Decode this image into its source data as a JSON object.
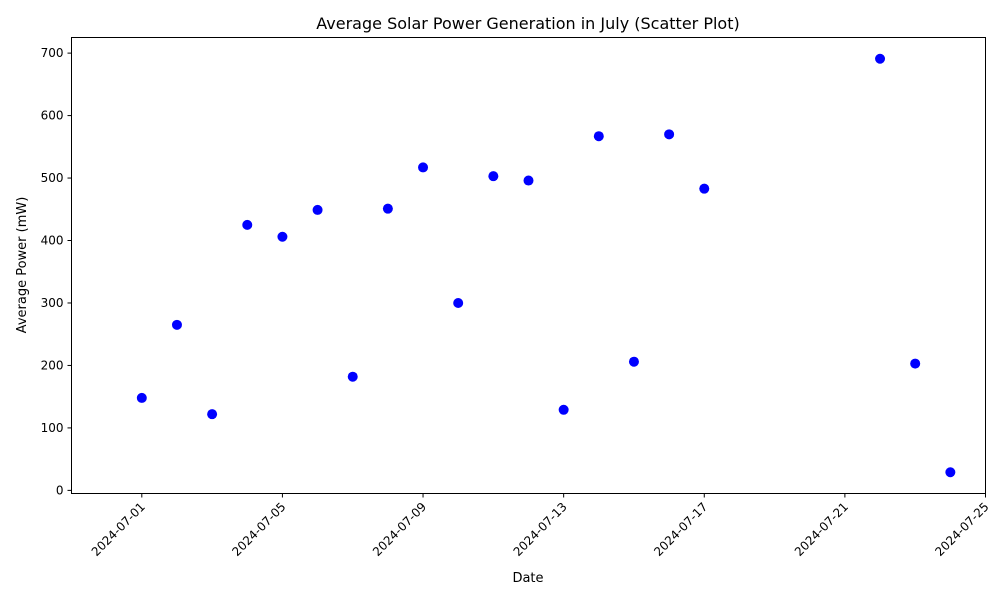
{
  "chart_data": {
    "type": "scatter",
    "title": "Average Solar Power Generation in July (Scatter Plot)",
    "xlabel": "Date",
    "ylabel": "Average Power (mW)",
    "x_ticks": [
      "2024-07-01",
      "2024-07-05",
      "2024-07-09",
      "2024-07-13",
      "2024-07-17",
      "2024-07-21",
      "2024-07-25"
    ],
    "y_ticks": [
      0,
      100,
      200,
      300,
      400,
      500,
      600,
      700
    ],
    "xlim": [
      "2024-06-29",
      "2024-07-25"
    ],
    "ylim": [
      -5,
      725
    ],
    "grid": false,
    "marker_color": "#0000ff",
    "series": [
      {
        "points": [
          {
            "x": "2024-07-01",
            "y": 148
          },
          {
            "x": "2024-07-02",
            "y": 265
          },
          {
            "x": "2024-07-03",
            "y": 122
          },
          {
            "x": "2024-07-04",
            "y": 425
          },
          {
            "x": "2024-07-05",
            "y": 406
          },
          {
            "x": "2024-07-06",
            "y": 449
          },
          {
            "x": "2024-07-07",
            "y": 182
          },
          {
            "x": "2024-07-08",
            "y": 451
          },
          {
            "x": "2024-07-09",
            "y": 517
          },
          {
            "x": "2024-07-10",
            "y": 300
          },
          {
            "x": "2024-07-11",
            "y": 503
          },
          {
            "x": "2024-07-12",
            "y": 496
          },
          {
            "x": "2024-07-13",
            "y": 129
          },
          {
            "x": "2024-07-14",
            "y": 567
          },
          {
            "x": "2024-07-15",
            "y": 206
          },
          {
            "x": "2024-07-16",
            "y": 570
          },
          {
            "x": "2024-07-17",
            "y": 483
          },
          {
            "x": "2024-07-22",
            "y": 691
          },
          {
            "x": "2024-07-23",
            "y": 203
          },
          {
            "x": "2024-07-24",
            "y": 29
          }
        ]
      }
    ]
  }
}
